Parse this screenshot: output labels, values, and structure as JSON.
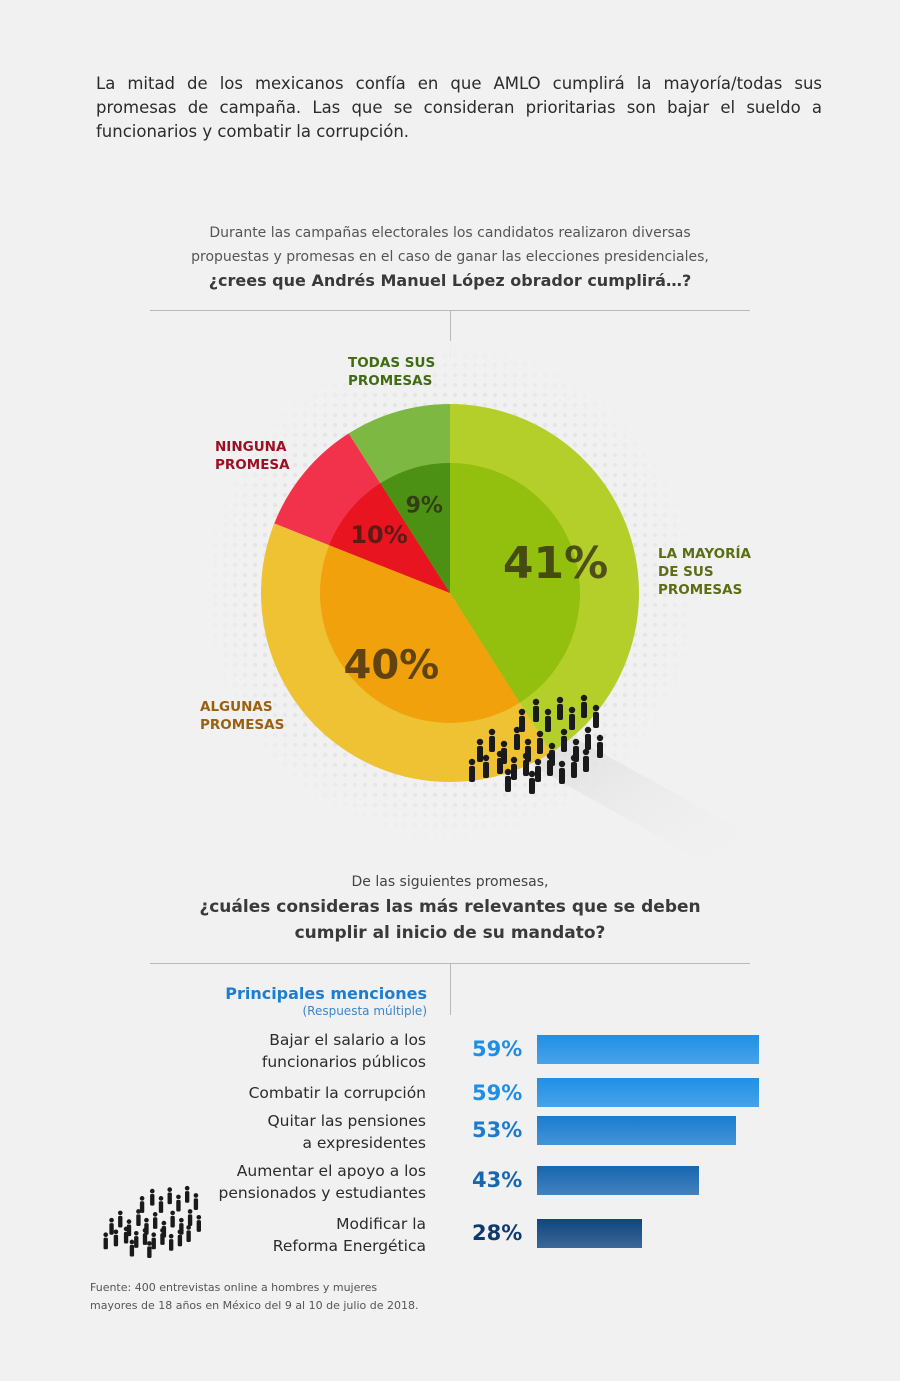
{
  "intro": "La mitad de los mexicanos confía en que AMLO cumplirá la mayoría/todas sus promesas de campaña. Las que se consideran prioritarias son bajar el sueldo a funcionarios y combatir la corrupción.",
  "question1": {
    "line1": "Durante las campañas electorales los candidatos realizaron diversas",
    "line2": "propuestas y promesas en el caso de ganar las elecciones presidenciales,",
    "bold": "¿crees que Andrés Manuel López obrador cumplirá…?"
  },
  "question2": {
    "line1": "De las siguientes promesas,",
    "bold1": "¿cuáles consideras las más relevantes que se deben",
    "bold2": "cumplir al inicio de su mandato?"
  },
  "colors": {
    "mayoria_outer": "#b5cf2a",
    "mayoria_inner": "#93bf0e",
    "algunas_outer": "#eec233",
    "algunas_inner": "#f0a10b",
    "ninguna_outer": "#f2324a",
    "ninguna_inner": "#e8141f",
    "todas_outer": "#7db843",
    "todas_inner": "#4c9114"
  },
  "chart_data": [
    {
      "type": "pie",
      "slices": [
        {
          "label": "LA MAYORÍA\nDE SUS\nPROMESAS",
          "value": 41,
          "value_label": "41%",
          "label_color": "#5a6e14"
        },
        {
          "label": "ALGUNAS\nPROMESAS",
          "value": 40,
          "value_label": "40%",
          "label_color": "#9a6012"
        },
        {
          "label": "NINGUNA\nPROMESA",
          "value": 10,
          "value_label": "10%",
          "label_color": "#9b1024"
        },
        {
          "label": "TODAS SUS\nPROMESAS",
          "value": 9,
          "value_label": "9%",
          "label_color": "#3f6b12"
        }
      ]
    },
    {
      "type": "bar",
      "title": "Principales menciones",
      "subtitle": "(Respuesta múltiple)",
      "categories": [
        "Bajar el salario a los\nfuncionarios públicos",
        "Combatir la corrupción",
        "Quitar las pensiones\na expresidentes",
        "Aumentar el apoyo a los\npensionados y estudiantes",
        "Modificar la\nReforma Energética"
      ],
      "values": [
        59,
        59,
        53,
        43,
        28
      ],
      "value_labels": [
        "59%",
        "59%",
        "53%",
        "43%",
        "28%"
      ],
      "bar_colors": [
        "#1f8fe6",
        "#1f8fe6",
        "#1a7cd0",
        "#1766b0",
        "#0f4580"
      ]
    }
  ],
  "source": "Fuente: 400 entrevistas online a hombres y mujeres\nmayores de 18 años en México del 9 al 10 de julio de 2018."
}
